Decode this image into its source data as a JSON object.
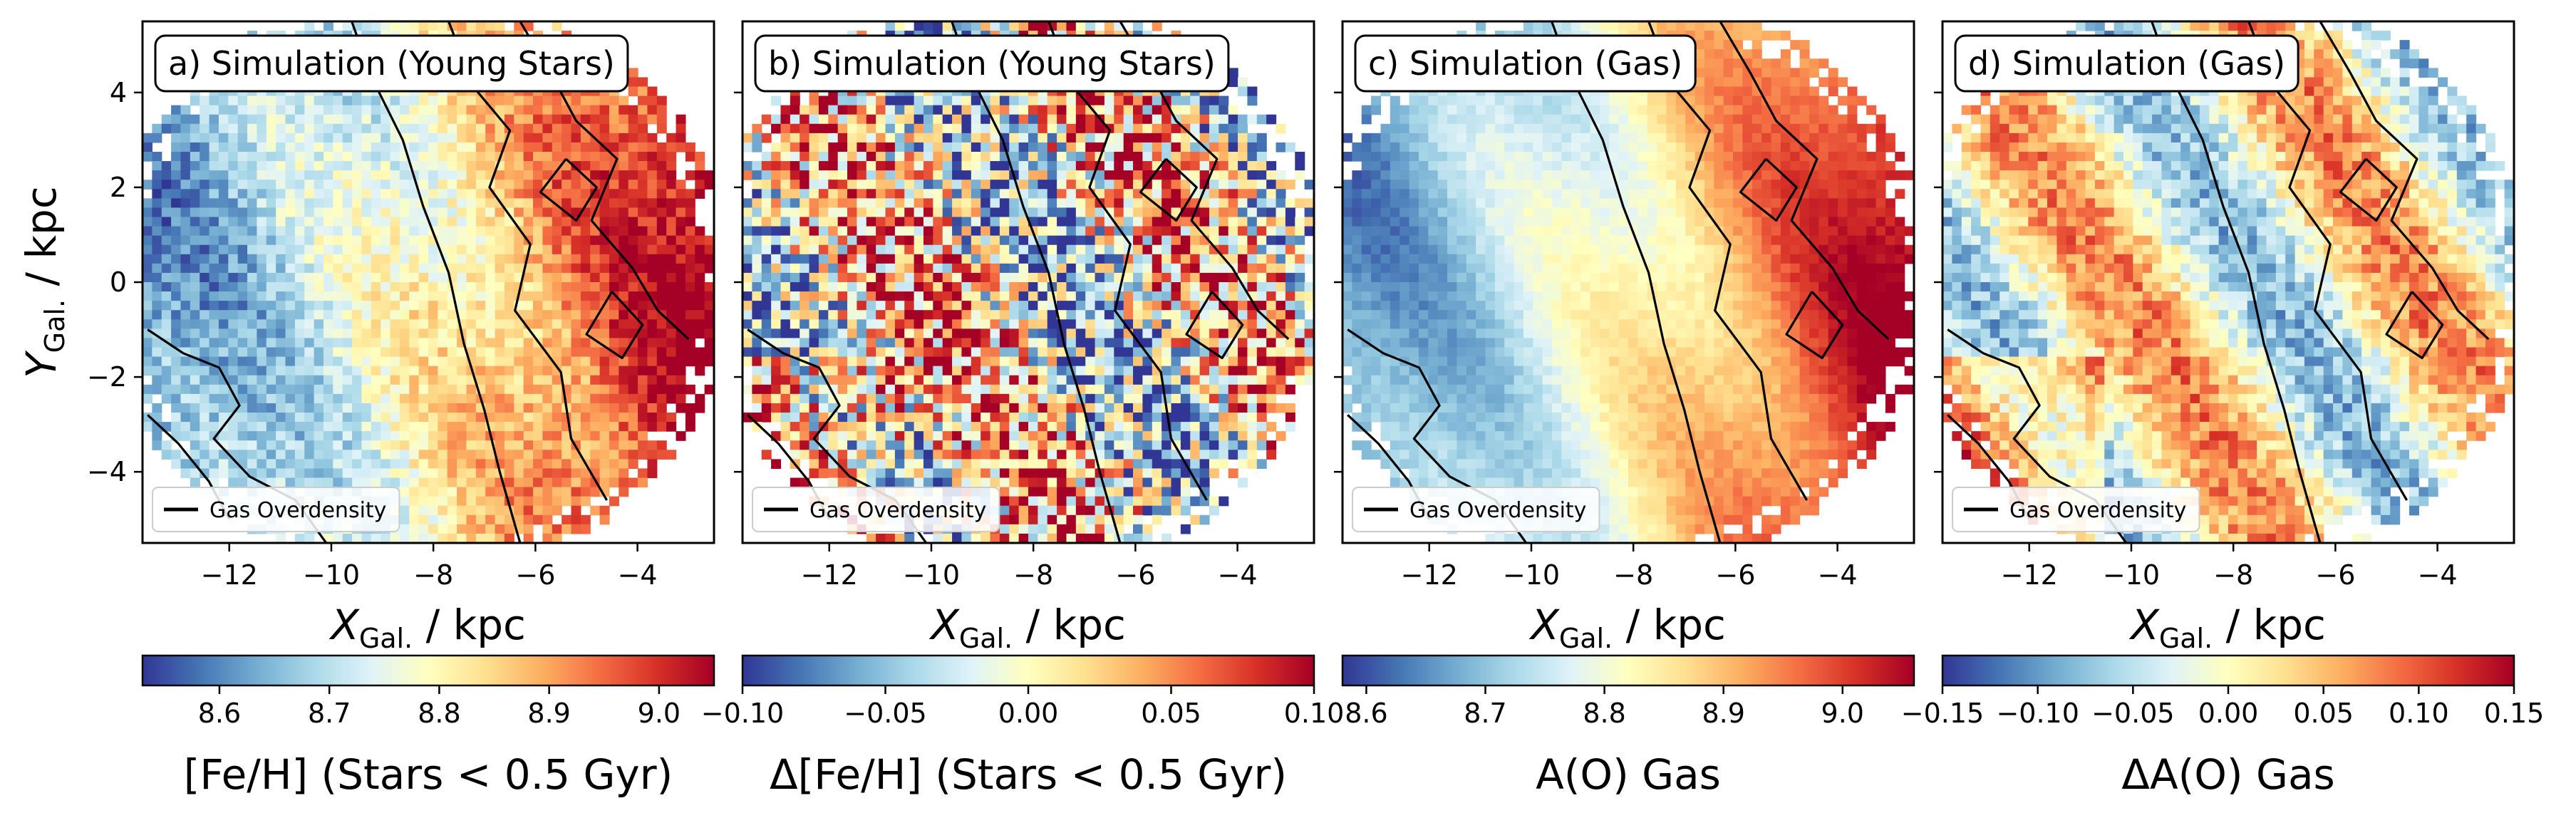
{
  "chart_data": [
    {
      "type": "heatmap",
      "title": "a) Simulation (Young Stars)",
      "xlabel_main": "X",
      "xlabel_sub": "Gal.",
      "xlabel_unit": " / kpc",
      "ylabel_main": "Y",
      "ylabel_sub": "Gal.",
      "ylabel_unit": " / kpc",
      "xlim": [
        -13.7,
        -2.5
      ],
      "ylim": [
        -5.5,
        5.5
      ],
      "xticks": [
        -12,
        -10,
        -8,
        -6,
        -4
      ],
      "yticks": [
        -4,
        -2,
        0,
        2,
        4
      ],
      "legend": "Gas Overdensity",
      "legend_position": "lower-left",
      "colorbar": {
        "label": "[Fe/H] (Stars < 0.5 Gyr)",
        "cmap": "RdYlBu_r",
        "range": [
          8.53,
          9.05
        ],
        "ticks": [
          8.6,
          8.7,
          8.8,
          8.9,
          9.0
        ],
        "tick_labels": [
          "8.6",
          "8.7",
          "8.8",
          "8.9",
          "9.0"
        ]
      },
      "field": {
        "kind": "gradient",
        "low": 8.62,
        "high": 9.05,
        "noise": 0.06,
        "seed": 11
      }
    },
    {
      "type": "heatmap",
      "title": "b) Simulation (Young Stars)",
      "xlabel_main": "X",
      "xlabel_sub": "Gal.",
      "xlabel_unit": " / kpc",
      "xlim": [
        -13.7,
        -2.5
      ],
      "ylim": [
        -5.5,
        5.5
      ],
      "xticks": [
        -12,
        -10,
        -8,
        -6,
        -4
      ],
      "legend": "Gas Overdensity",
      "legend_position": "lower-left",
      "colorbar": {
        "label": "Δ[Fe/H] (Stars < 0.5 Gyr)",
        "cmap": "RdYlBu_r",
        "range": [
          -0.1,
          0.1
        ],
        "ticks": [
          -0.1,
          -0.05,
          0.0,
          0.05,
          0.1
        ],
        "tick_labels": [
          "−0.10",
          "−0.05",
          "0.00",
          "0.05",
          "0.10"
        ]
      },
      "field": {
        "kind": "residual",
        "low": -0.1,
        "high": 0.1,
        "noise": 0.09,
        "seed": 23
      }
    },
    {
      "type": "heatmap",
      "title": "c) Simulation (Gas)",
      "xlabel_main": "X",
      "xlabel_sub": "Gal.",
      "xlabel_unit": " / kpc",
      "xlim": [
        -13.7,
        -2.5
      ],
      "ylim": [
        -5.5,
        5.5
      ],
      "xticks": [
        -12,
        -10,
        -8,
        -6,
        -4
      ],
      "legend": "Gas Overdensity",
      "legend_position": "lower-left",
      "colorbar": {
        "label": "A(O) Gas",
        "cmap": "RdYlBu_r",
        "range": [
          8.58,
          9.06
        ],
        "ticks": [
          8.6,
          8.7,
          8.8,
          8.9,
          9.0
        ],
        "tick_labels": [
          "8.6",
          "8.7",
          "8.8",
          "8.9",
          "9.0"
        ]
      },
      "field": {
        "kind": "gradient",
        "low": 8.66,
        "high": 9.06,
        "noise": 0.02,
        "seed": 37
      }
    },
    {
      "type": "heatmap",
      "title": "d) Simulation (Gas)",
      "xlabel_main": "X",
      "xlabel_sub": "Gal.",
      "xlabel_unit": " / kpc",
      "xlim": [
        -13.7,
        -2.5
      ],
      "ylim": [
        -5.5,
        5.5
      ],
      "xticks": [
        -12,
        -10,
        -8,
        -6,
        -4
      ],
      "legend": "Gas Overdensity",
      "legend_position": "lower-left",
      "colorbar": {
        "label": "ΔA(O) Gas",
        "cmap": "RdYlBu_r",
        "range": [
          -0.15,
          0.15
        ],
        "ticks": [
          -0.15,
          -0.1,
          -0.05,
          0.0,
          0.05,
          0.1,
          0.15
        ],
        "tick_labels": [
          "−0.15",
          "−0.10",
          "−0.05",
          "0.00",
          "0.05",
          "0.10",
          "0.15"
        ]
      },
      "field": {
        "kind": "residual",
        "low": -0.15,
        "high": 0.15,
        "noise": 0.04,
        "seed": 51
      }
    }
  ]
}
